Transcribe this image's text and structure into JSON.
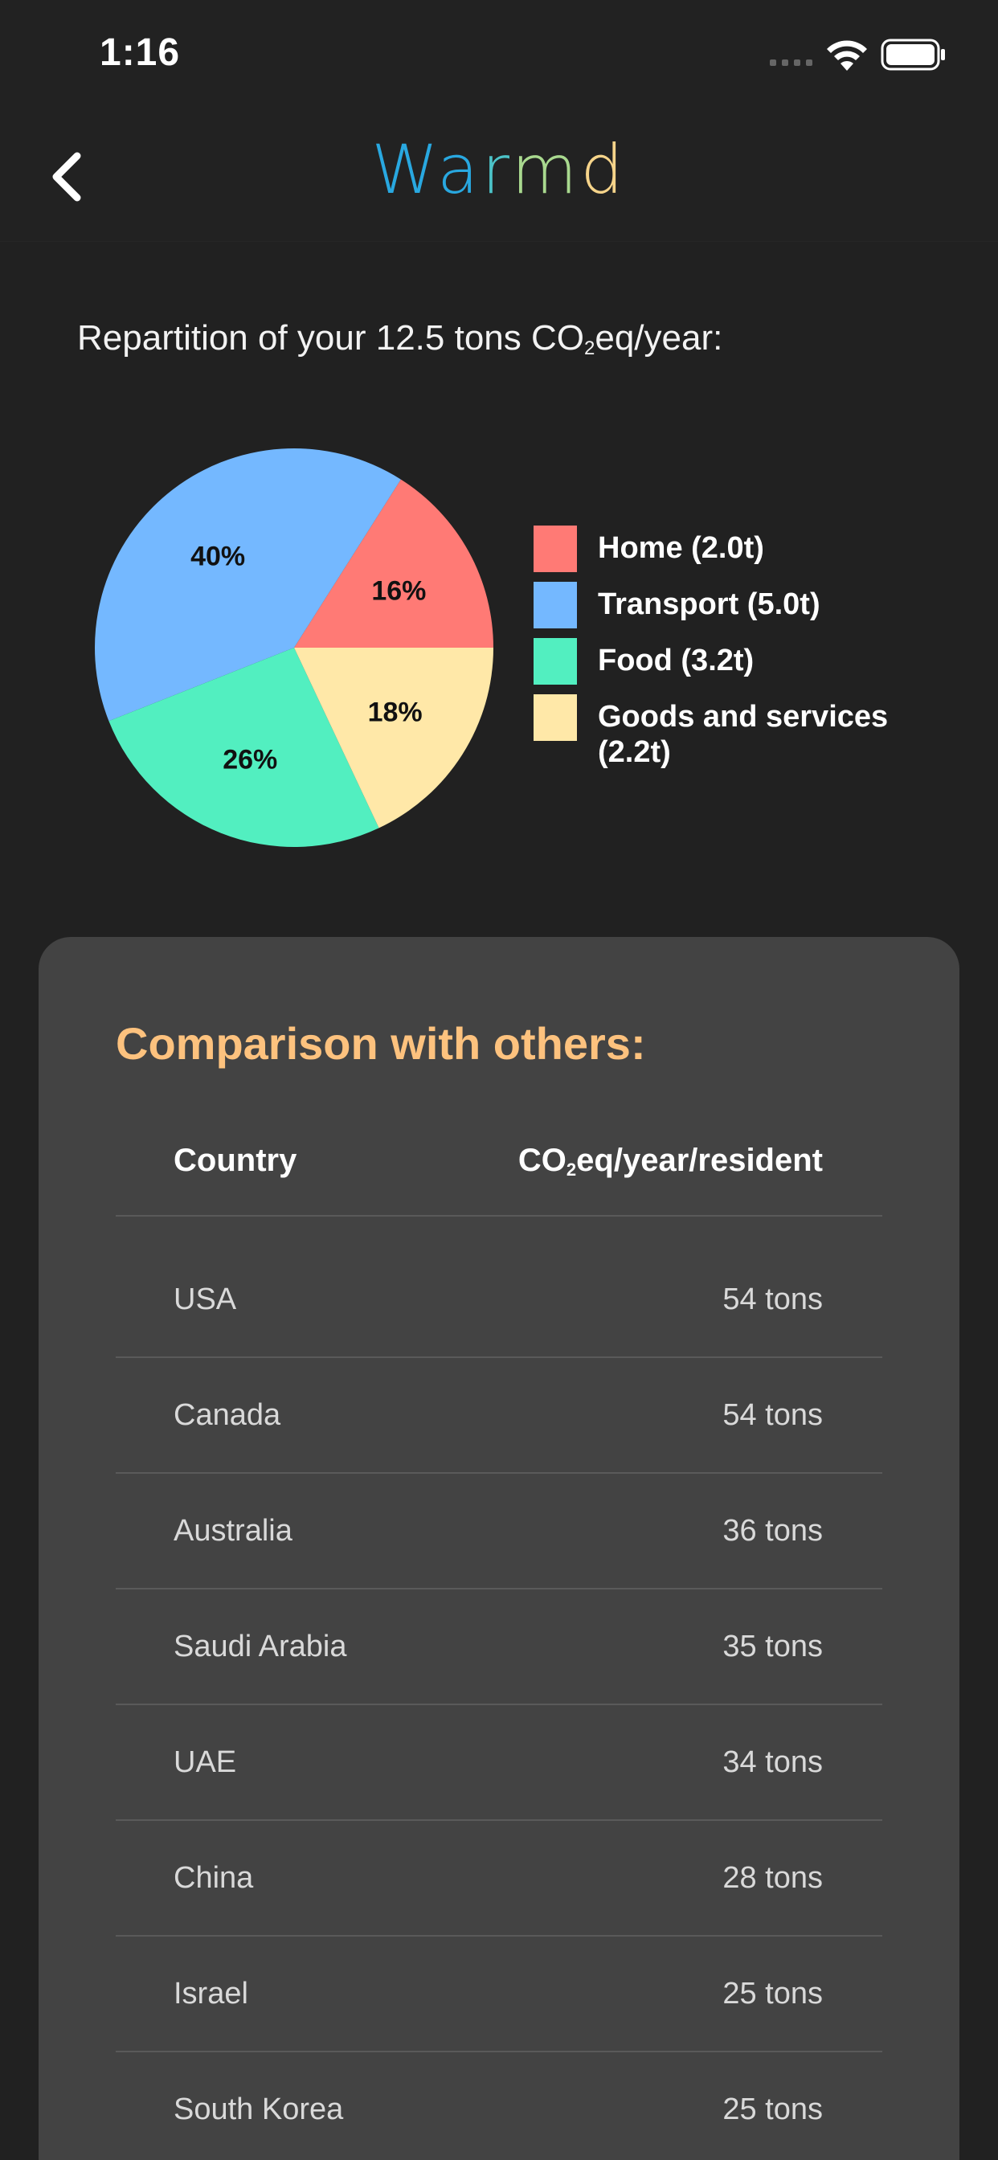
{
  "status_bar": {
    "time": "1:16"
  },
  "app": {
    "logo_letters": [
      {
        "char": "W",
        "color": "#29a8e0"
      },
      {
        "char": "a",
        "color": "#29a8e0"
      },
      {
        "char": "r",
        "color": "#4cc3c8"
      },
      {
        "char": "m",
        "color": "#a9d98f"
      },
      {
        "char": "d",
        "color": "#f6d48a"
      }
    ]
  },
  "repartition": {
    "title_prefix": "Repartition of your 12.5 tons CO",
    "title_sub": "2",
    "title_suffix": "eq/year:"
  },
  "chart_data": {
    "type": "pie",
    "slices": [
      {
        "name": "Home (2.0t)",
        "value": 16,
        "label": "16%",
        "color": "#ff7a75"
      },
      {
        "name": "Transport (5.0t)",
        "value": 40,
        "label": "40%",
        "color": "#74b8ff"
      },
      {
        "name": "Food (3.2t)",
        "value": 26,
        "label": "26%",
        "color": "#52efc0"
      },
      {
        "name": "Goods and services (2.2t)",
        "value": 18,
        "label": "18%",
        "color": "#ffe8a8"
      }
    ],
    "legend_placement": "right"
  },
  "comparison": {
    "title": "Comparison with others:",
    "col_country": "Country",
    "col_value_prefix": "CO",
    "col_value_sub": "2",
    "col_value_suffix": "eq/year/resident",
    "rows": [
      {
        "country": "USA",
        "value": "54 tons"
      },
      {
        "country": "Canada",
        "value": "54 tons"
      },
      {
        "country": "Australia",
        "value": "36 tons"
      },
      {
        "country": "Saudi Arabia",
        "value": "35 tons"
      },
      {
        "country": "UAE",
        "value": "34 tons"
      },
      {
        "country": "China",
        "value": "28 tons"
      },
      {
        "country": "Israel",
        "value": "25 tons"
      },
      {
        "country": "South Korea",
        "value": "25 tons"
      }
    ]
  }
}
